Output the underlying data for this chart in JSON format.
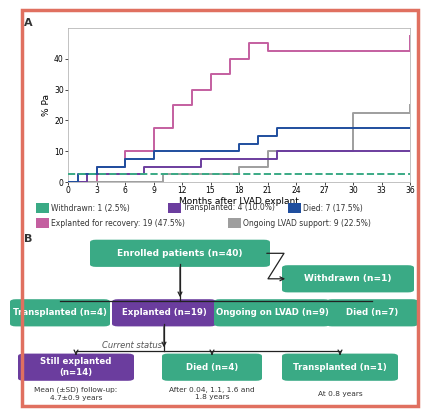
{
  "ylabel": "% Pa",
  "xlabel": "Months after LVAD explant",
  "ylim": [
    0,
    50
  ],
  "xlim": [
    0,
    36
  ],
  "xticks": [
    0,
    3,
    6,
    9,
    12,
    15,
    18,
    21,
    24,
    27,
    30,
    33,
    36
  ],
  "yticks": [
    0,
    10,
    20,
    30,
    40
  ],
  "background": "#ffffff",
  "border_color": "#e07060",
  "lines": {
    "withdrawn": {
      "color": "#3aaa85",
      "dash": "dashed",
      "label": "Withdrawn: 1 (2.5%)",
      "x": [
        0,
        6,
        36
      ],
      "y": [
        2.5,
        2.5,
        2.5
      ]
    },
    "transplanted": {
      "color": "#6b3d9e",
      "dash": "solid",
      "label": "Transplanted: 4 (10.0%)",
      "x": [
        0,
        2,
        8,
        14,
        22,
        36
      ],
      "y": [
        0,
        2.5,
        5.0,
        7.5,
        10.0,
        10.0
      ]
    },
    "died": {
      "color": "#1f4e9e",
      "dash": "solid",
      "label": "Died: 7 (17.5%)",
      "x": [
        0,
        1,
        3,
        6,
        9,
        18,
        20,
        22,
        36
      ],
      "y": [
        0,
        2.5,
        5.0,
        7.5,
        10.0,
        12.5,
        15.0,
        17.5,
        17.5
      ]
    },
    "explanted": {
      "color": "#c45fa0",
      "dash": "solid",
      "label": "Explanted for recovery: 19 (47.5%)",
      "x": [
        0,
        3,
        6,
        9,
        11,
        13,
        15,
        17,
        19,
        20,
        21,
        23,
        25,
        36
      ],
      "y": [
        0,
        5.0,
        10.0,
        17.5,
        25.0,
        30.0,
        35.0,
        40.0,
        45.0,
        45.0,
        42.5,
        42.5,
        42.5,
        47.5
      ]
    },
    "ongoing": {
      "color": "#9e9e9e",
      "dash": "solid",
      "label": "Ongoing LVAD support: 9 (22.5%)",
      "x": [
        0,
        10,
        18,
        21,
        30,
        36
      ],
      "y": [
        0,
        2.5,
        5.0,
        10.0,
        22.5,
        25.0
      ]
    }
  },
  "legend_row1": [
    {
      "key": "withdrawn",
      "label": "Withdrawn: 1 (2.5%)",
      "color": "#3aaa85",
      "dash": "dashed"
    },
    {
      "key": "transplanted",
      "label": "Transplanted: 4 (10.0%)",
      "color": "#6b3d9e",
      "dash": "solid"
    },
    {
      "key": "died",
      "label": "Died: 7 (17.5%)",
      "color": "#1f4e9e",
      "dash": "solid"
    }
  ],
  "legend_row2": [
    {
      "key": "explanted",
      "label": "Explanted for recovery: 19 (47.5%)",
      "color": "#c45fa0",
      "dash": "solid"
    },
    {
      "key": "ongoing",
      "label": "Ongoing LVAD support: 9 (22.5%)",
      "color": "#9e9e9e",
      "dash": "solid"
    }
  ],
  "teal": "#3aaa85",
  "purple": "#6b3d9e",
  "dark": "#222222",
  "fc_enrolled": {
    "label": "Enrolled patients (n=40)"
  },
  "fc_withdrawn": {
    "label": "Withdrawn (n=1)"
  },
  "fc_nodes2": [
    {
      "label": "Transplanted (n=4)",
      "color": "teal"
    },
    {
      "label": "Explanted (n=19)",
      "color": "purple"
    },
    {
      "label": "Ongoing on LVAD (n=9)",
      "color": "teal"
    },
    {
      "label": "Died (n=7)",
      "color": "teal"
    }
  ],
  "fc_nodes3": [
    {
      "label": "Still explanted (n=14)",
      "color": "purple"
    },
    {
      "label": "Died (n=4)",
      "color": "teal"
    },
    {
      "label": "Transplanted (n=1)",
      "color": "teal"
    }
  ],
  "fc_annots": [
    "Mean (±SD) follow-up:\n4.7±0.9 years",
    "After 0.04, 1.1, 1.6 and\n1.8 years",
    "At 0.8 years"
  ],
  "fc_current_status": "Current status"
}
